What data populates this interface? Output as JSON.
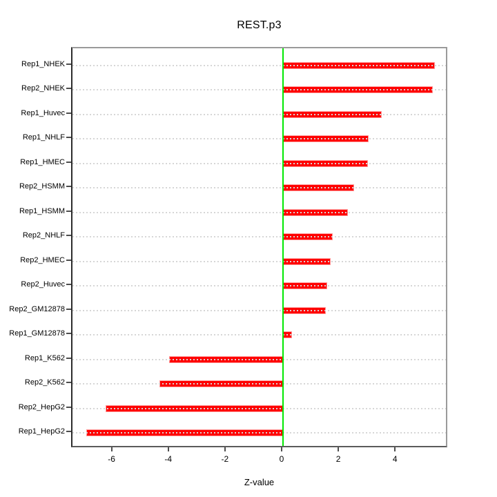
{
  "chart_data": {
    "type": "bar",
    "orientation": "horizontal",
    "title": "REST.p3",
    "xlabel": "Z-value",
    "ylabel": "",
    "categories": [
      "Rep1_NHEK",
      "Rep2_NHEK",
      "Rep1_Huvec",
      "Rep1_NHLF",
      "Rep1_HMEC",
      "Rep2_HSMM",
      "Rep1_HSMM",
      "Rep2_NHLF",
      "Rep2_HMEC",
      "Rep2_Huvec",
      "Rep2_GM12878",
      "Rep1_GM12878",
      "Rep1_K562",
      "Rep2_K562",
      "Rep2_HepG2",
      "Rep1_HepG2"
    ],
    "values": [
      5.35,
      5.28,
      3.48,
      3.01,
      3.0,
      2.51,
      2.3,
      1.75,
      1.69,
      1.57,
      1.51,
      0.31,
      -4.03,
      -4.36,
      -6.27,
      -6.93
    ],
    "xticks": [
      -6,
      -4,
      -2,
      0,
      2,
      4
    ],
    "xlim": [
      -7.43,
      5.84
    ],
    "grid": "dotted horizontal line per category, full width",
    "zero_line": true,
    "legend": "none",
    "colors": {
      "bar_fill": "#ff0000",
      "bar_border": "#ff9999",
      "zero_line": "#00e800",
      "grid_line": "#d6d6d6",
      "box_border": "#9a9a9a",
      "tick": "#4d4d4d",
      "text": "#000000",
      "background": "#ffffff"
    }
  }
}
